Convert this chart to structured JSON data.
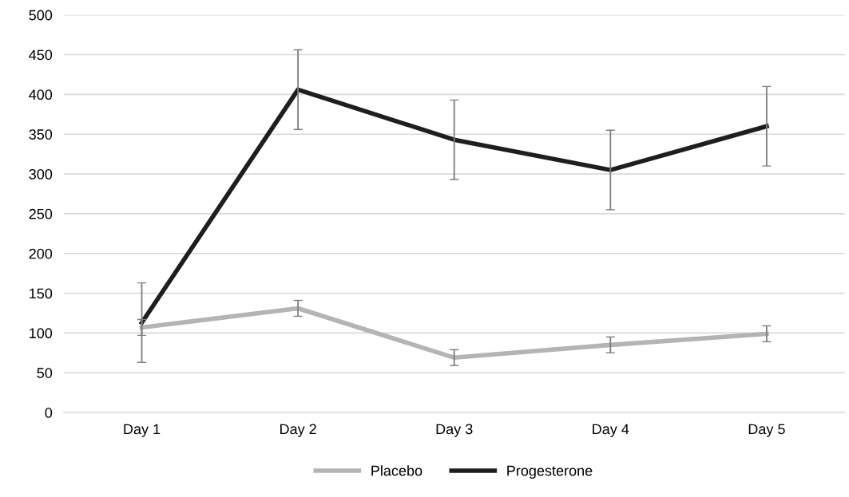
{
  "chart_data": {
    "type": "line",
    "categories": [
      "Day 1",
      "Day 2",
      "Day 3",
      "Day 4",
      "Day 5"
    ],
    "series": [
      {
        "name": "Placebo",
        "color": "#b4b4b4",
        "values": [
          107,
          131,
          69,
          85,
          99
        ],
        "errors": [
          10,
          10,
          10,
          10,
          10
        ]
      },
      {
        "name": "Progesterone",
        "color": "#1e1e1e",
        "values": [
          113,
          406,
          343,
          305,
          360
        ],
        "errors": [
          50,
          50,
          50,
          50,
          50
        ]
      }
    ],
    "ylim": [
      0,
      500
    ],
    "yticks": [
      0,
      50,
      100,
      150,
      200,
      250,
      300,
      350,
      400,
      450,
      500
    ],
    "grid": "y",
    "legend": "bottom",
    "marker": "none",
    "line_style": "solid"
  }
}
